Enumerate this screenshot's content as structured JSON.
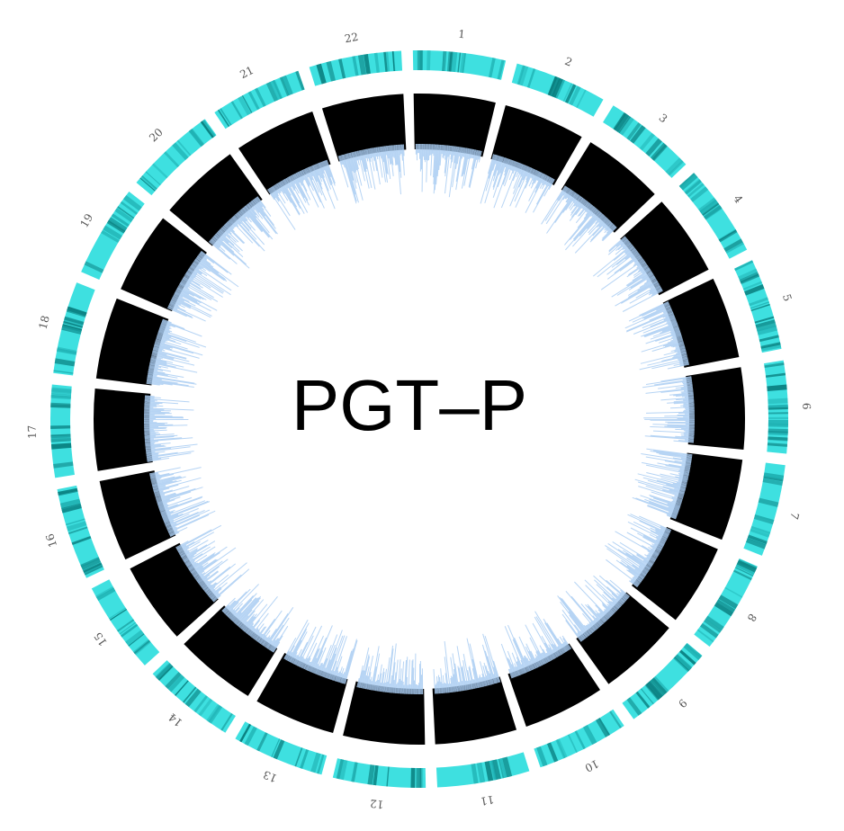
{
  "title": "PGT–P",
  "chromosomes": [
    "1",
    "2",
    "3",
    "4",
    "5",
    "6",
    "7",
    "8",
    "9",
    "10",
    "11",
    "12",
    "13",
    "14",
    "15",
    "16",
    "17",
    "18",
    "19",
    "20",
    "21",
    "22"
  ],
  "colors": {
    "ideogram_base": "#3ee0e0",
    "ideogram_band_dark": "#0a7f80",
    "ideogram_band_mid": "#1fb0b2",
    "track_fill": "#000000",
    "track_spikes": "#a9cdf2",
    "background": "#ffffff",
    "label": "#555555"
  }
}
